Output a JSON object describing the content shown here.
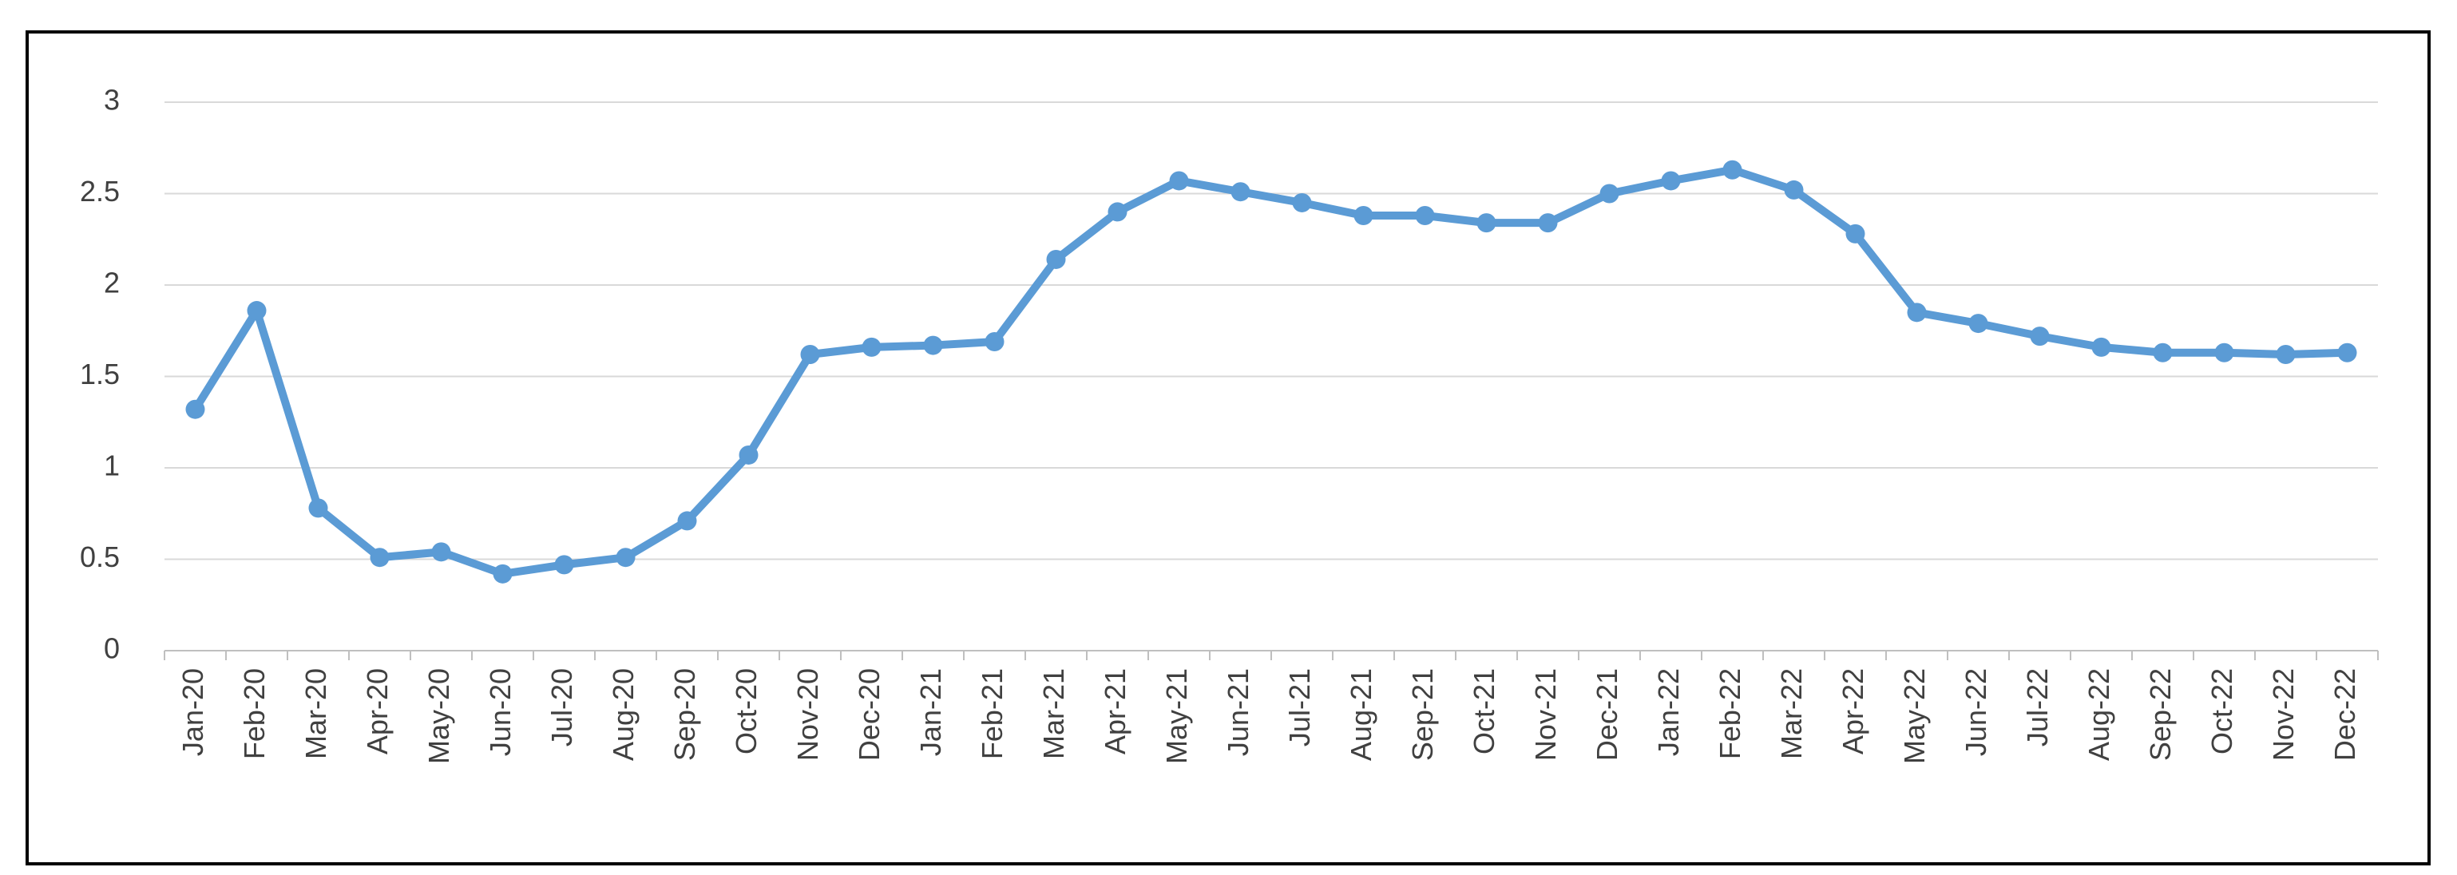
{
  "chart_data": {
    "type": "line",
    "categories": [
      "Jan-20",
      "Feb-20",
      "Mar-20",
      "Apr-20",
      "May-20",
      "Jun-20",
      "Jul-20",
      "Aug-20",
      "Sep-20",
      "Oct-20",
      "Nov-20",
      "Dec-20",
      "Jan-21",
      "Feb-21",
      "Mar-21",
      "Apr-21",
      "May-21",
      "Jun-21",
      "Jul-21",
      "Aug-21",
      "Sep-21",
      "Oct-21",
      "Nov-21",
      "Dec-21",
      "Jan-22",
      "Feb-22",
      "Mar-22",
      "Apr-22",
      "May-22",
      "Jun-22",
      "Jul-22",
      "Aug-22",
      "Sep-22",
      "Oct-22",
      "Nov-22",
      "Dec-22"
    ],
    "values": [
      1.32,
      1.86,
      0.78,
      0.51,
      0.54,
      0.42,
      0.47,
      0.51,
      0.71,
      1.07,
      1.62,
      1.66,
      1.67,
      1.69,
      2.14,
      2.4,
      2.57,
      2.51,
      2.45,
      2.38,
      2.38,
      2.34,
      2.34,
      2.5,
      2.57,
      2.63,
      2.52,
      2.28,
      1.85,
      1.79,
      1.72,
      1.66,
      1.63,
      1.63,
      1.62,
      1.63
    ],
    "color": "#5b9bd5",
    "ylim": [
      0,
      3
    ],
    "yticks": [
      0,
      0.5,
      1,
      1.5,
      2,
      2.5,
      3
    ],
    "grid": true
  }
}
